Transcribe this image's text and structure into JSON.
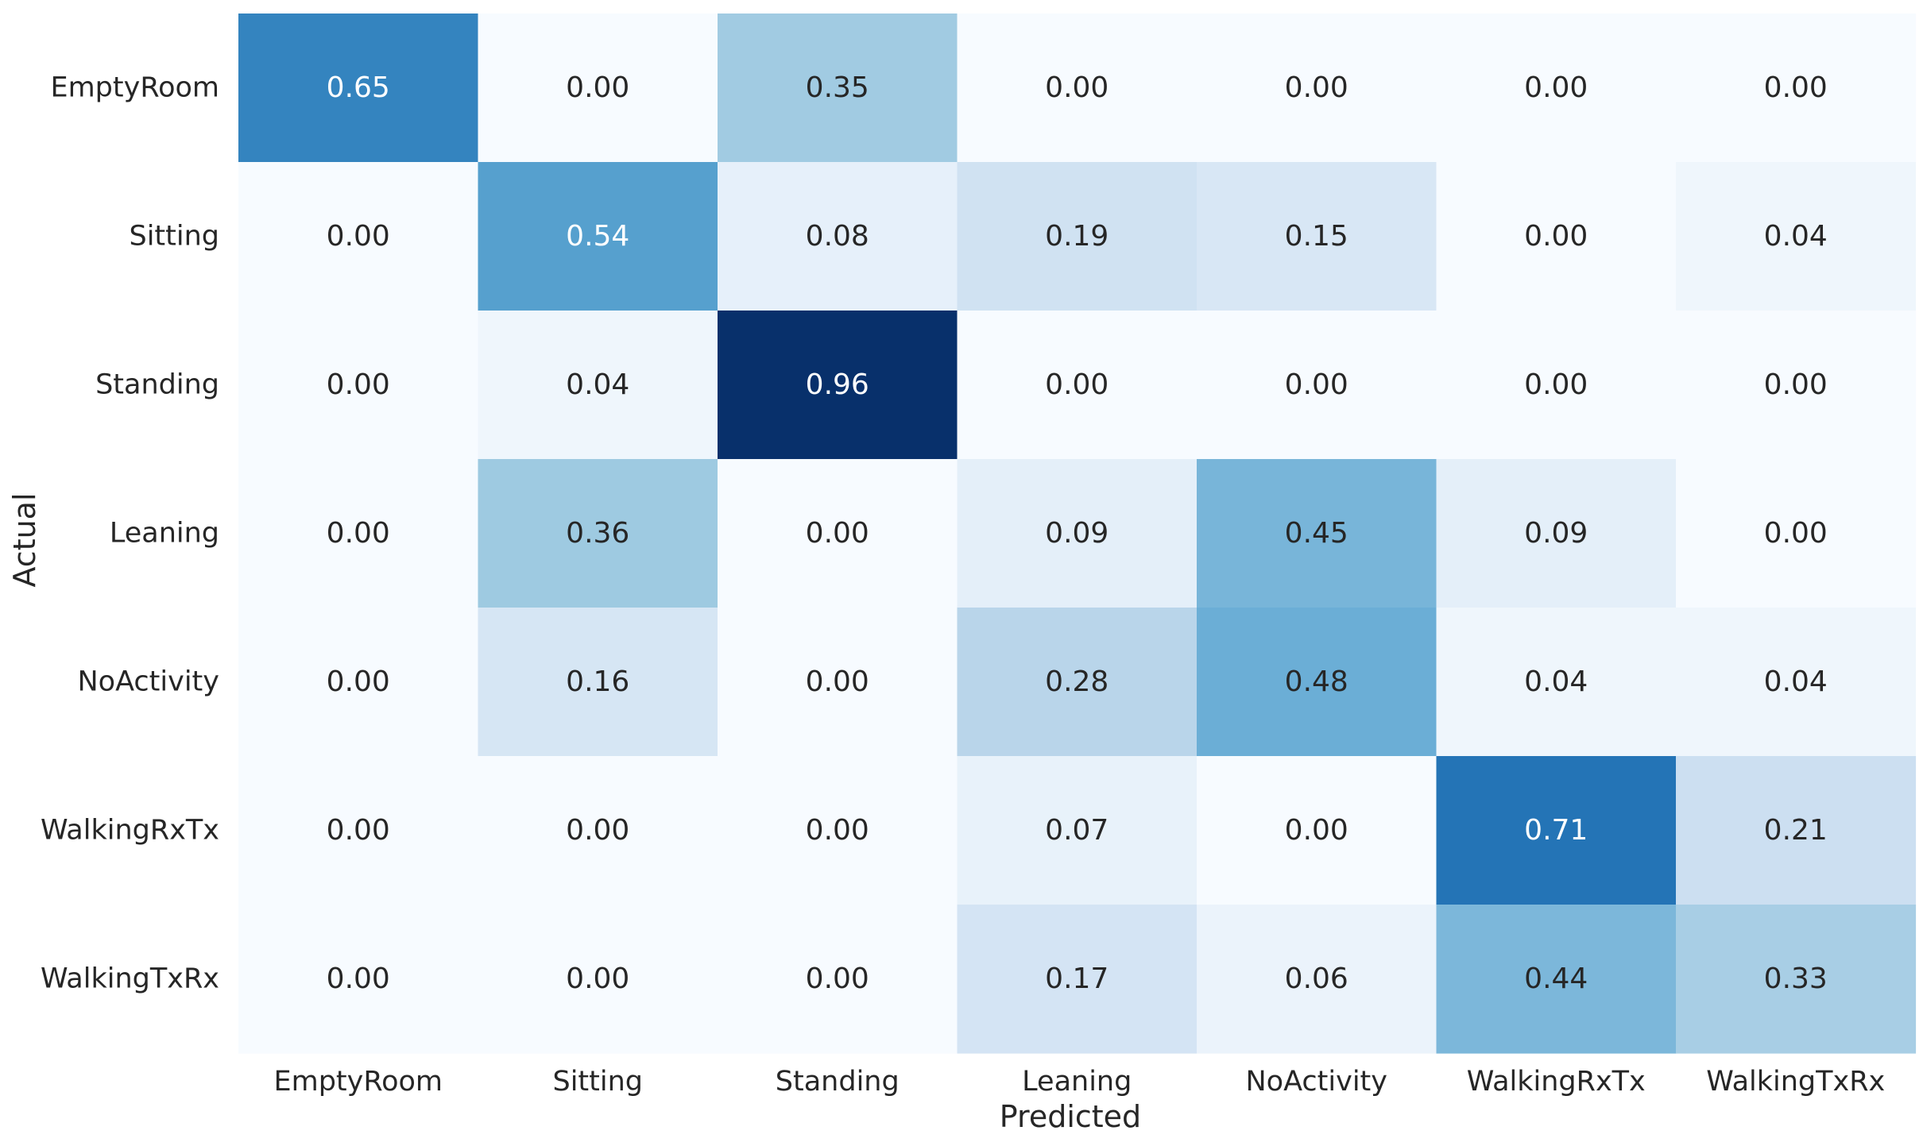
{
  "chart_data": {
    "type": "heatmap",
    "title": "",
    "xlabel": "Predicted",
    "ylabel": "Actual",
    "x_categories": [
      "EmptyRoom",
      "Sitting",
      "Standing",
      "Leaning",
      "NoActivity",
      "WalkingRxTx",
      "WalkingTxRx"
    ],
    "y_categories": [
      "EmptyRoom",
      "Sitting",
      "Standing",
      "Leaning",
      "NoActivity",
      "WalkingRxTx",
      "WalkingTxRx"
    ],
    "values": [
      [
        0.65,
        0.0,
        0.35,
        0.0,
        0.0,
        0.0,
        0.0
      ],
      [
        0.0,
        0.54,
        0.08,
        0.19,
        0.15,
        0.0,
        0.04
      ],
      [
        0.0,
        0.04,
        0.96,
        0.0,
        0.0,
        0.0,
        0.0
      ],
      [
        0.0,
        0.36,
        0.0,
        0.09,
        0.45,
        0.09,
        0.0
      ],
      [
        0.0,
        0.16,
        0.0,
        0.28,
        0.48,
        0.04,
        0.04
      ],
      [
        0.0,
        0.0,
        0.0,
        0.07,
        0.0,
        0.71,
        0.21
      ],
      [
        0.0,
        0.0,
        0.0,
        0.17,
        0.06,
        0.44,
        0.33
      ]
    ],
    "value_format": "0.00",
    "colormap": "Blues",
    "vmin": 0.0,
    "vmax": 0.96,
    "colorbar": false,
    "grid": false
  }
}
